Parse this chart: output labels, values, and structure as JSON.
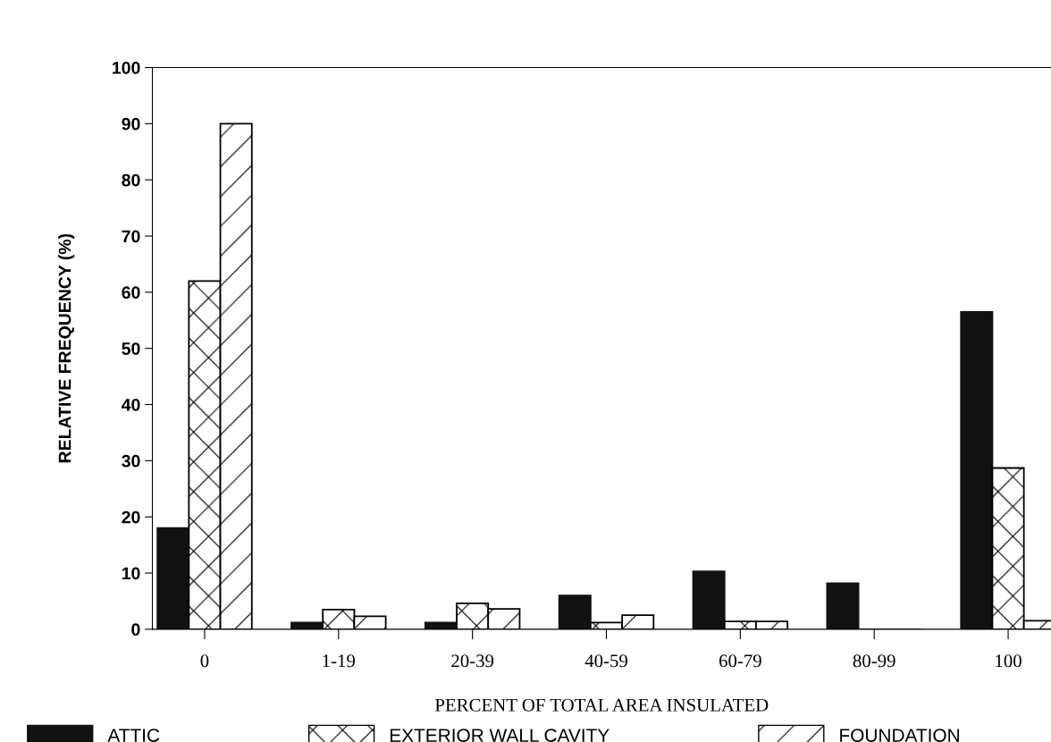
{
  "chart_data": {
    "type": "bar",
    "xlabel": "PERCENT OF TOTAL AREA INSULATED",
    "ylabel": "RELATIVE FREQUENCY (%)",
    "categories": [
      "0",
      "1-19",
      "20-39",
      "40-59",
      "60-79",
      "80-99",
      "100"
    ],
    "series": [
      {
        "name": "ATTIC",
        "color": "#111111",
        "values": [
          18,
          1.2,
          1.2,
          6,
          10.3,
          8.2,
          56.5
        ]
      },
      {
        "name": "EXTERIOR WALL CAVITY",
        "color": "#000000",
        "values": [
          62,
          3.5,
          4.6,
          1.2,
          1.4,
          0,
          28.7
        ]
      },
      {
        "name": "FOUNDATION",
        "color": "#000000",
        "values": [
          90,
          2.3,
          3.6,
          2.5,
          1.4,
          0,
          1.5
        ]
      }
    ],
    "ylim": [
      0,
      100
    ],
    "yticks": [
      0,
      10,
      20,
      30,
      40,
      50,
      60,
      70,
      80,
      90,
      100
    ],
    "grid": false,
    "legend": "bottom"
  }
}
